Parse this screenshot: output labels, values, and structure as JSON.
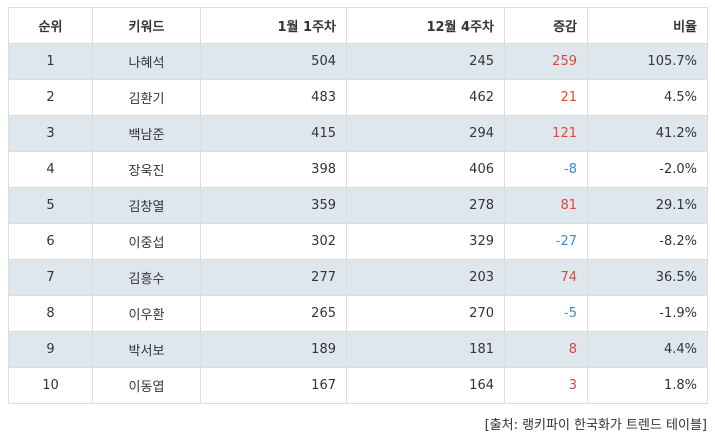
{
  "table": {
    "headers": {
      "rank": "순위",
      "keyword": "키워드",
      "week1": "1월 1주차",
      "week_prev": "12월 4주차",
      "change": "증감",
      "ratio": "비율"
    },
    "rows": [
      {
        "rank": "1",
        "keyword": "나혜석",
        "week1": "504",
        "week_prev": "245",
        "change": "259",
        "ratio": "105.7%"
      },
      {
        "rank": "2",
        "keyword": "김환기",
        "week1": "483",
        "week_prev": "462",
        "change": "21",
        "ratio": "4.5%"
      },
      {
        "rank": "3",
        "keyword": "백남준",
        "week1": "415",
        "week_prev": "294",
        "change": "121",
        "ratio": "41.2%"
      },
      {
        "rank": "4",
        "keyword": "장욱진",
        "week1": "398",
        "week_prev": "406",
        "change": "-8",
        "ratio": "-2.0%"
      },
      {
        "rank": "5",
        "keyword": "김창열",
        "week1": "359",
        "week_prev": "278",
        "change": "81",
        "ratio": "29.1%"
      },
      {
        "rank": "6",
        "keyword": "이중섭",
        "week1": "302",
        "week_prev": "329",
        "change": "-27",
        "ratio": "-8.2%"
      },
      {
        "rank": "7",
        "keyword": "김흥수",
        "week1": "277",
        "week_prev": "203",
        "change": "74",
        "ratio": "36.5%"
      },
      {
        "rank": "8",
        "keyword": "이우환",
        "week1": "265",
        "week_prev": "270",
        "change": "-5",
        "ratio": "-1.9%"
      },
      {
        "rank": "9",
        "keyword": "박서보",
        "week1": "189",
        "week_prev": "181",
        "change": "8",
        "ratio": "4.4%"
      },
      {
        "rank": "10",
        "keyword": "이동엽",
        "week1": "167",
        "week_prev": "164",
        "change": "3",
        "ratio": "1.8%"
      }
    ]
  },
  "colors": {
    "shaded_row": "#dfe7ee",
    "increase": "#e0463a",
    "decrease": "#3a8fd0",
    "border": "#dddddd"
  },
  "source": "[출처: 랭키파이 한국화가 트렌드 테이블]"
}
